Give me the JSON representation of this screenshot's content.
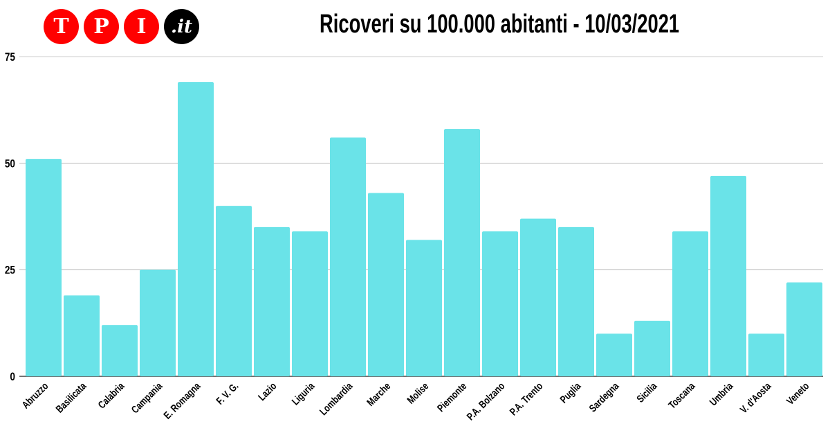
{
  "logo": {
    "letters": [
      "T",
      "P",
      "I"
    ],
    "suffix": ".it",
    "colors": {
      "red": "#ff0000",
      "black": "#000000"
    }
  },
  "chart_data": {
    "type": "bar",
    "title": "Ricoveri su 100.000 abitanti - 10/03/2021",
    "categories": [
      "Abruzzo",
      "Basilicata",
      "Calabria",
      "Campania",
      "E. Romagna",
      "F. V. G.",
      "Lazio",
      "Liguria",
      "Lombardia",
      "Marche",
      "Molise",
      "Piemonte",
      "P.A. Bolzano",
      "P.A. Trento",
      "Puglia",
      "Sardegna",
      "Sicilia",
      "Toscana",
      "Umbria",
      "V. d'Aosta",
      "Veneto"
    ],
    "values": [
      51,
      19,
      12,
      25,
      69,
      40,
      35,
      34,
      56,
      43,
      32,
      58,
      34,
      37,
      35,
      10,
      13,
      34,
      47,
      10,
      22
    ],
    "ylim": [
      0,
      75
    ],
    "yticks": [
      0,
      25,
      50,
      75
    ],
    "grid": true,
    "bar_color": "#6ae3e8"
  }
}
